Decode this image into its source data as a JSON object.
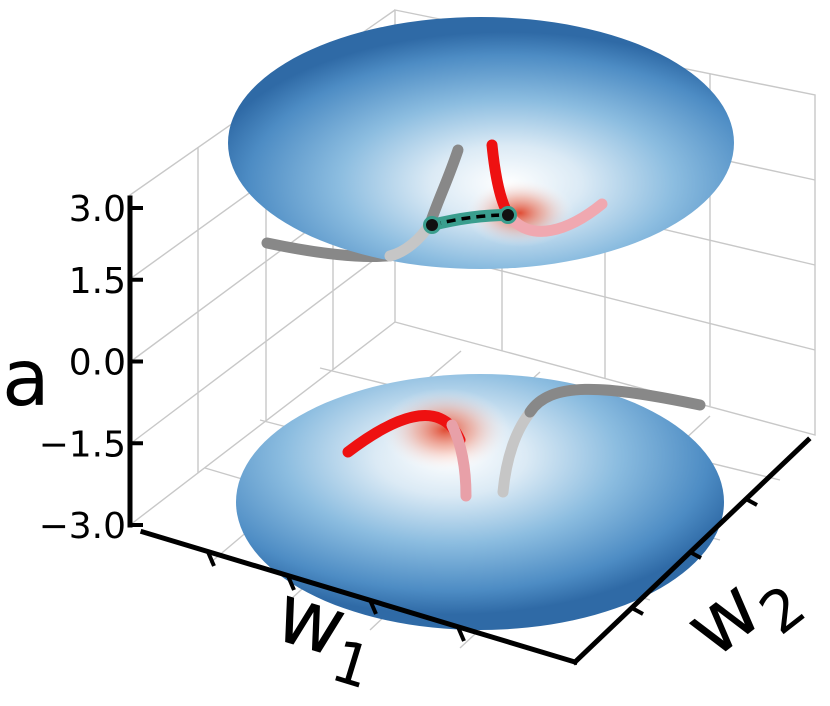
{
  "chart_data": {
    "type": "surface3d",
    "xlabel": "w",
    "xlabel_sub": "1",
    "ylabel": "w",
    "ylabel_sub": "2",
    "zlabel": "a",
    "zticks": [
      {
        "value": 3.0,
        "label": "3.0"
      },
      {
        "value": 1.5,
        "label": "1.5"
      },
      {
        "value": 0.0,
        "label": "0.0"
      },
      {
        "value": -1.5,
        "label": "−1.5"
      },
      {
        "value": -3.0,
        "label": "−3.0"
      }
    ],
    "zlim": [
      -3.0,
      3.0
    ],
    "grid": true,
    "surfaces": [
      {
        "name": "upper sheet",
        "branch": "upper"
      },
      {
        "name": "lower sheet",
        "branch": "lower"
      }
    ],
    "colors": {
      "surface_edge": "#2f6aa6",
      "surface_mid": "#8cbde0",
      "surface_center": "#ffffff",
      "hot_spot": "#e0442a",
      "red_trajectory": "#ee1111",
      "gray_trajectory": "#888888",
      "teal_path": "#3a9e8e"
    }
  }
}
